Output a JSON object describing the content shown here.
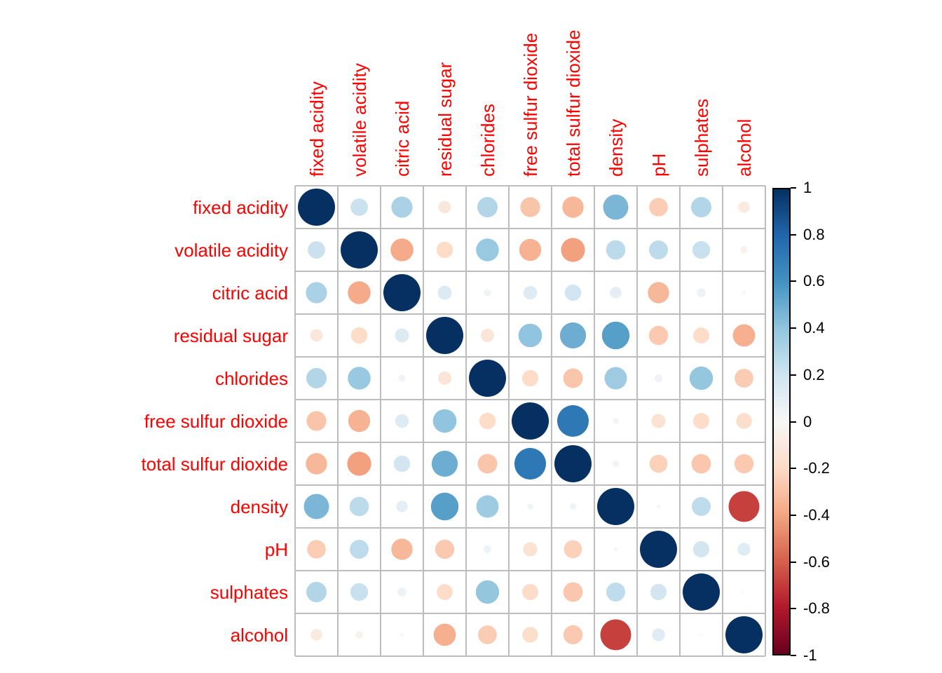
{
  "chart_data": {
    "type": "heatmap",
    "subtype": "correlation-matrix-circles",
    "title": "",
    "legend_position": "right",
    "grid": true,
    "value_range": [
      -1,
      1
    ],
    "variables": [
      "fixed acidity",
      "volatile acidity",
      "citric acid",
      "residual sugar",
      "chlorides",
      "free sulfur dioxide",
      "total sulfur dioxide",
      "density",
      "pH",
      "sulphates",
      "alcohol"
    ],
    "matrix": [
      [
        1.0,
        0.219,
        0.324,
        -0.112,
        0.298,
        -0.283,
        -0.329,
        0.459,
        -0.252,
        0.299,
        -0.095
      ],
      [
        0.219,
        1.0,
        -0.378,
        -0.196,
        0.377,
        -0.353,
        -0.414,
        0.271,
        0.261,
        0.226,
        -0.038
      ],
      [
        0.324,
        -0.378,
        1.0,
        0.142,
        0.039,
        0.133,
        0.195,
        0.096,
        -0.33,
        0.056,
        -0.01
      ],
      [
        -0.112,
        -0.196,
        0.142,
        1.0,
        -0.129,
        0.403,
        0.495,
        0.552,
        -0.267,
        -0.186,
        -0.359
      ],
      [
        0.298,
        0.377,
        0.039,
        -0.129,
        1.0,
        -0.195,
        -0.28,
        0.363,
        0.045,
        0.395,
        -0.257
      ],
      [
        -0.283,
        -0.353,
        0.133,
        0.403,
        -0.195,
        1.0,
        0.721,
        0.026,
        -0.146,
        -0.188,
        -0.18
      ],
      [
        -0.329,
        -0.414,
        0.195,
        0.495,
        -0.28,
        0.721,
        1.0,
        0.032,
        -0.238,
        -0.276,
        -0.266
      ],
      [
        0.459,
        0.271,
        0.096,
        0.552,
        0.363,
        0.026,
        0.032,
        1.0,
        0.012,
        0.259,
        -0.687
      ],
      [
        -0.252,
        0.261,
        -0.33,
        -0.267,
        0.045,
        -0.146,
        -0.238,
        0.012,
        1.0,
        0.192,
        0.121
      ],
      [
        0.299,
        0.226,
        0.056,
        -0.186,
        0.395,
        -0.188,
        -0.276,
        0.259,
        0.192,
        1.0,
        -0.003
      ],
      [
        -0.095,
        -0.038,
        -0.01,
        -0.359,
        -0.257,
        -0.18,
        -0.266,
        -0.687,
        0.121,
        -0.003,
        1.0
      ]
    ],
    "colorbar": {
      "tick_labels": [
        "1",
        "0.8",
        "0.6",
        "0.4",
        "0.2",
        "0",
        "-0.2",
        "-0.4",
        "-0.6",
        "-0.8",
        "-1"
      ],
      "palette_negative_to_positive": [
        "#67001F",
        "#B2182B",
        "#D6604D",
        "#F4A582",
        "#FDDBC7",
        "#F7F7F7",
        "#D1E5F0",
        "#92C5DE",
        "#4393C3",
        "#2166AC",
        "#053061"
      ]
    },
    "colors": {
      "variable_label": "#FF0000",
      "tick_label": "#000000",
      "grid_line": "#BDBDBD",
      "background": "#FFFFFF"
    }
  }
}
